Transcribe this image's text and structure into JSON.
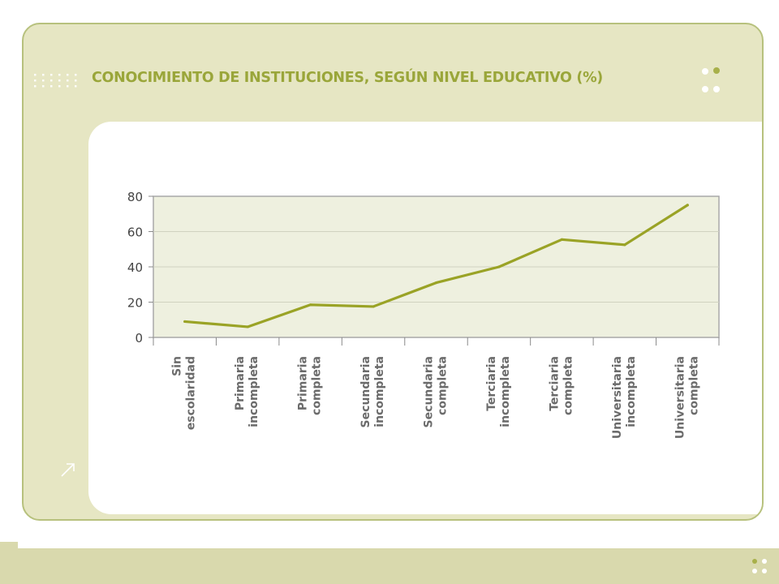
{
  "title": "CONOCIMIENTO DE INSTITUCIONES, SEGÚN NIVEL EDUCATIVO (%)",
  "colors": {
    "frame_bg": "#e6e6c3",
    "frame_border": "#b7c17d",
    "title": "#9aa63a",
    "plot_bg": "#eef0df",
    "line": "#9aa326",
    "bottom_bar": "#d9d9ad"
  },
  "icons": {
    "left_decoration": "dotted-grid-icon",
    "right_decoration": "four-dots-icon",
    "corner_link": "arrow-up-right-icon",
    "footer_decoration": "four-dots-icon"
  },
  "chart_data": {
    "type": "line",
    "title": "CONOCIMIENTO DE INSTITUCIONES, SEGÚN NIVEL EDUCATIVO (%)",
    "xlabel": "",
    "ylabel": "",
    "ylim": [
      0,
      80
    ],
    "yticks": [
      0,
      20,
      40,
      60,
      80
    ],
    "grid": true,
    "legend": "none",
    "categories": [
      [
        "Sin",
        "escolaridad"
      ],
      [
        "Primaria",
        "incompleta"
      ],
      [
        "Primaria",
        "completa"
      ],
      [
        "Secundaria",
        "incompleta"
      ],
      [
        "Secundaria",
        "completa"
      ],
      [
        "Terciaria",
        "incompleta"
      ],
      [
        "Terciaria",
        "completa"
      ],
      [
        "Universitaria",
        "incompleta"
      ],
      [
        "Universitaria",
        "completa"
      ]
    ],
    "series": [
      {
        "values": [
          9,
          6,
          18.5,
          17.5,
          31,
          40,
          55.5,
          52.5,
          75
        ]
      }
    ]
  }
}
